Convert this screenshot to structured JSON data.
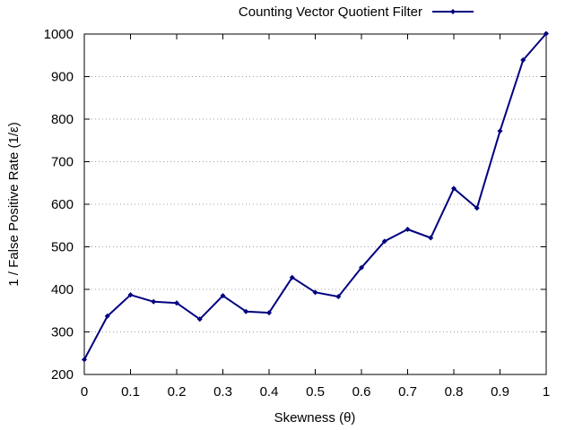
{
  "chart_data": {
    "type": "line",
    "xlabel": "Skewness (θ)",
    "ylabel": "1 / False Positive Rate (1/ε)",
    "xlim": [
      0,
      1
    ],
    "ylim": [
      200,
      1000
    ],
    "x_ticks": [
      "0",
      "0.1",
      "0.2",
      "0.3",
      "0.4",
      "0.5",
      "0.6",
      "0.7",
      "0.8",
      "0.9",
      "1"
    ],
    "y_ticks": [
      "200",
      "300",
      "400",
      "500",
      "600",
      "700",
      "800",
      "900",
      "1000"
    ],
    "grid": "horizontal dotted",
    "legend_position": "top-right",
    "series": [
      {
        "name": "Counting Vector Quotient Filter",
        "color": "#000080",
        "marker": "diamond",
        "x": [
          0,
          0.05,
          0.1,
          0.15,
          0.2,
          0.25,
          0.3,
          0.35,
          0.4,
          0.45,
          0.5,
          0.55,
          0.6,
          0.65,
          0.7,
          0.75,
          0.8,
          0.85,
          0.9,
          0.95,
          1.0
        ],
        "values": [
          235,
          337,
          387,
          371,
          368,
          330,
          385,
          348,
          345,
          428,
          393,
          383,
          451,
          513,
          541,
          521,
          637,
          591,
          772,
          939,
          1001
        ]
      }
    ]
  }
}
